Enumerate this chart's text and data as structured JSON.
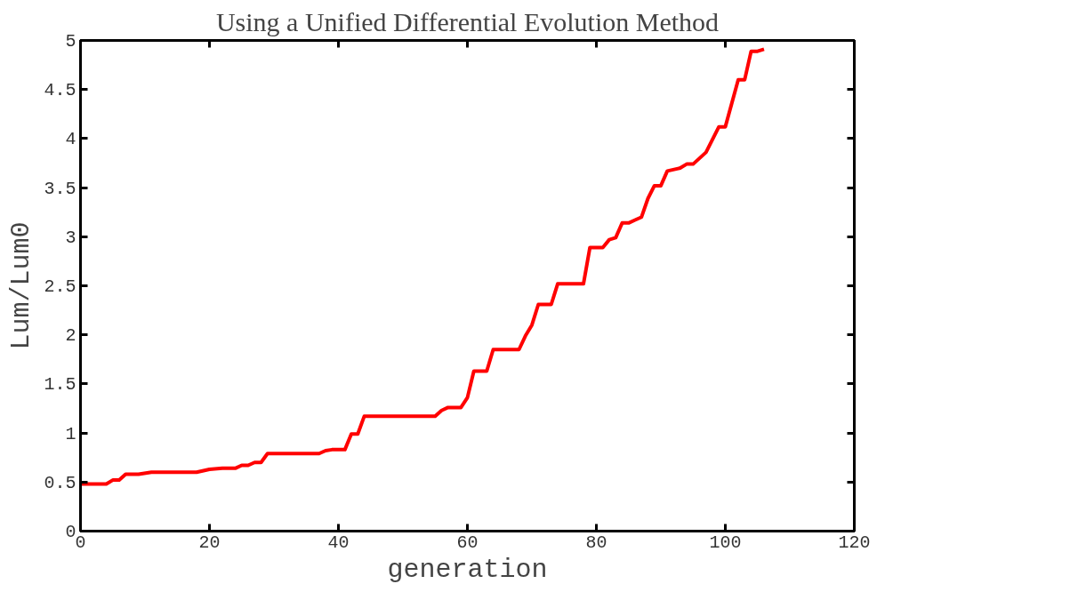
{
  "chart_data": {
    "type": "line",
    "title": "Using a Unified Differential Evolution Method",
    "xlabel": "generation",
    "ylabel": "Lum/Lum0",
    "xlim": [
      0,
      120
    ],
    "xticks": [
      0,
      20,
      40,
      60,
      80,
      100,
      120
    ],
    "ylim": [
      0,
      5
    ],
    "yticks": [
      0,
      0.5,
      1,
      1.5,
      2,
      2.5,
      3,
      3.5,
      4,
      4.5,
      5
    ],
    "grid": false,
    "marker": "none",
    "line_style": "solid",
    "series": [
      {
        "color": "#ff0000",
        "x": [
          0,
          4,
          5,
          6,
          7,
          9,
          11,
          18,
          20,
          22,
          24,
          25,
          26,
          27,
          28,
          29,
          37,
          38,
          39,
          41,
          42,
          43,
          44,
          55,
          56,
          57,
          59,
          60,
          61,
          63,
          64,
          68,
          69,
          70,
          71,
          73,
          74,
          78,
          79,
          81,
          82,
          83,
          84,
          85,
          86,
          87,
          88,
          89,
          90,
          91,
          93,
          94,
          95,
          97,
          99,
          100,
          102,
          103,
          104,
          105,
          106
        ],
        "values": [
          0.48,
          0.48,
          0.52,
          0.52,
          0.58,
          0.58,
          0.6,
          0.6,
          0.63,
          0.64,
          0.64,
          0.67,
          0.67,
          0.7,
          0.7,
          0.79,
          0.79,
          0.82,
          0.83,
          0.83,
          0.99,
          0.99,
          1.17,
          1.17,
          1.23,
          1.26,
          1.26,
          1.36,
          1.63,
          1.63,
          1.85,
          1.85,
          1.99,
          2.1,
          2.31,
          2.31,
          2.52,
          2.52,
          2.89,
          2.89,
          2.97,
          2.99,
          3.14,
          3.14,
          3.17,
          3.2,
          3.39,
          3.52,
          3.52,
          3.67,
          3.7,
          3.74,
          3.74,
          3.86,
          4.12,
          4.12,
          4.6,
          4.6,
          4.89,
          4.89,
          4.91
        ]
      }
    ]
  }
}
